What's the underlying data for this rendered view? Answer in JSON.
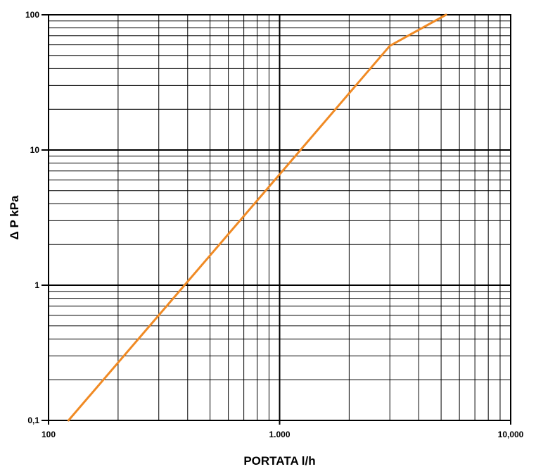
{
  "chart_data": {
    "type": "line",
    "title": "",
    "xlabel": "PORTATA  l/h",
    "ylabel": "Δ P kPa",
    "x_scale": "log",
    "y_scale": "log",
    "xlim": [
      100,
      10000
    ],
    "ylim": [
      0.1,
      100
    ],
    "x_ticks": [
      100,
      1000,
      10000
    ],
    "x_tick_labels": [
      "100",
      "1.000",
      "10,000"
    ],
    "y_ticks": [
      0.1,
      1,
      10,
      100
    ],
    "y_tick_labels": [
      "0,1",
      "1",
      "10",
      "100"
    ],
    "grid": true,
    "legend": "none",
    "series": [
      {
        "color": "#f08a24",
        "x": [
          122,
          300,
          1000,
          3000,
          5250
        ],
        "y": [
          0.1,
          0.6,
          6.6,
          59,
          100
        ]
      }
    ]
  }
}
